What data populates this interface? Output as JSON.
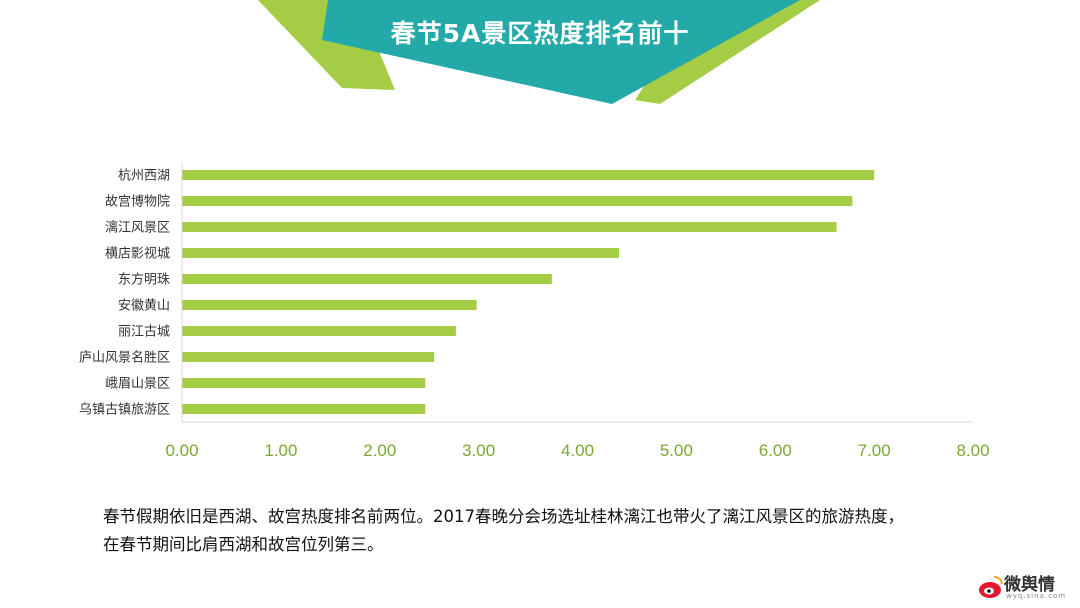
{
  "header": {
    "title": "春节5A景区热度排名前十"
  },
  "chart_data": {
    "type": "bar",
    "orientation": "horizontal",
    "categories": [
      "杭州西湖",
      "故宫博物院",
      "漓江风景区",
      "横店影视城",
      "东方明珠",
      "安徽黄山",
      "丽江古城",
      "庐山风景名胜区",
      "峨眉山景区",
      "乌镇古镇旅游区"
    ],
    "values": [
      7.0,
      6.78,
      6.62,
      4.42,
      3.74,
      2.98,
      2.77,
      2.55,
      2.46,
      2.46
    ],
    "xlim": [
      0,
      8
    ],
    "xticks": [
      "0.00",
      "1.00",
      "2.00",
      "3.00",
      "4.00",
      "5.00",
      "6.00",
      "7.00",
      "8.00"
    ],
    "title": "",
    "xlabel": "",
    "ylabel": "",
    "grid": false,
    "bar_color": "#a4cc44",
    "tick_color": "#7aa832"
  },
  "caption": {
    "line1": "春节假期依旧是西湖、故宫热度排名前两位。2017春晚分会场选址桂林漓江也带火了漓江风景区的旅游热度，",
    "line2": "在春节期间比肩西湖和故宫位列第三。"
  },
  "logo": {
    "text": "微舆情",
    "sub": "wyq.sina.com"
  },
  "colors": {
    "teal": "#23aaa8",
    "green": "#a4cc44"
  }
}
